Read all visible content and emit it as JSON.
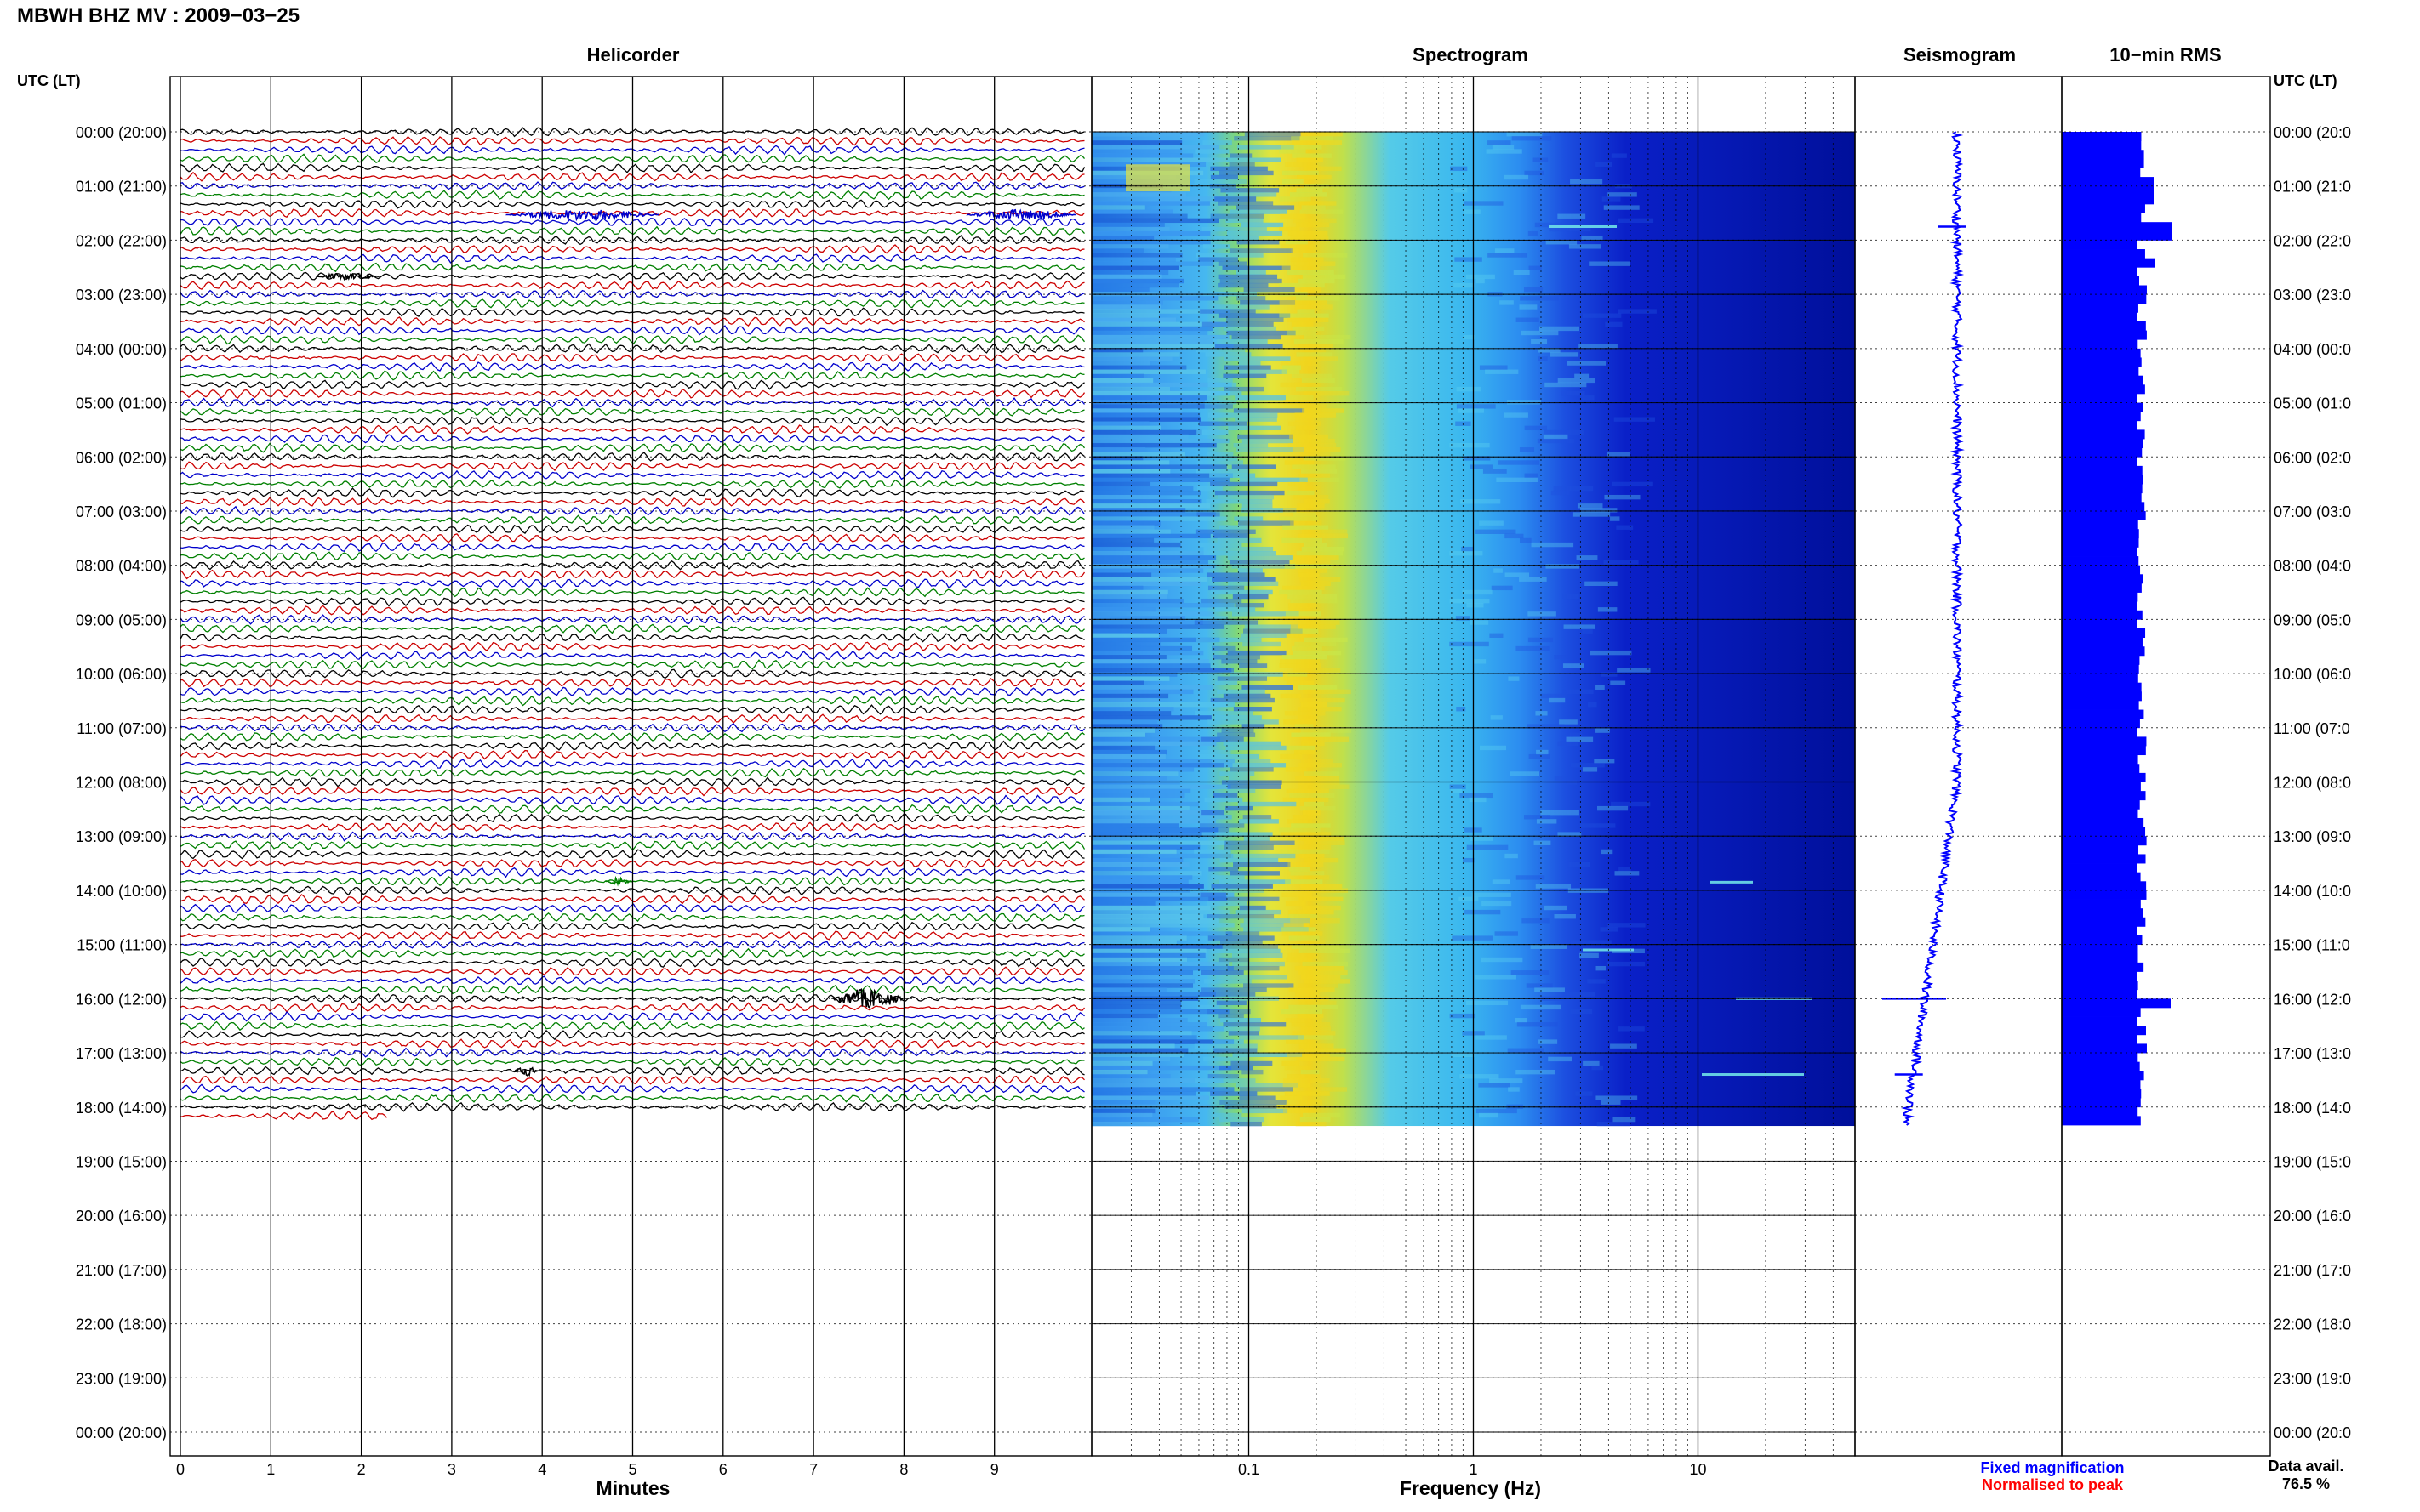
{
  "header": {
    "title": "MBWH BHZ MV : 2009−03−25",
    "utc_left": "UTC (LT)",
    "utc_right": "UTC (LT)"
  },
  "panels": {
    "helicorder": "Helicorder",
    "spectrogram": "Spectrogram",
    "seismogram": "Seismogram",
    "rms": "10−min RMS"
  },
  "axes": {
    "minutes_label": "Minutes",
    "frequency_label": "Frequency (Hz)",
    "minute_ticks": [
      "0",
      "1",
      "2",
      "3",
      "4",
      "5",
      "6",
      "7",
      "8",
      "9"
    ],
    "freq_ticks": [
      "0.1",
      "1",
      "10"
    ]
  },
  "legend": {
    "fixed": "Fixed magnification",
    "normalised": "Normalised to peak"
  },
  "availability": {
    "label": "Data avail.",
    "value": "76.5 %"
  },
  "colors": {
    "trace_cycle": [
      "#000000",
      "#cc0000",
      "#0000cc",
      "#008000"
    ],
    "seismogram": "#0000ff",
    "rms": "#0000ff",
    "grid": "#000000"
  },
  "chart_data": [
    {
      "type": "line",
      "name": "helicorder",
      "xlabel": "Minutes",
      "xlim": [
        0,
        10
      ],
      "row_minutes": 10,
      "rows_total": 144,
      "rows_with_data": 110,
      "last_row_fraction": 0.23,
      "events": [
        {
          "hour_offset": 1.53,
          "minute_start": 3.6,
          "minute_end": 5.3,
          "amp": "medium"
        },
        {
          "hour_offset": 1.53,
          "minute_start": 8.7,
          "minute_end": 9.9,
          "amp": "medium"
        },
        {
          "hour_offset": 2.67,
          "minute_start": 1.5,
          "minute_end": 2.2,
          "amp": "small"
        },
        {
          "hour_offset": 13.83,
          "minute_start": 4.7,
          "minute_end": 5.0,
          "amp": "small"
        },
        {
          "hour_offset": 16.0,
          "minute_start": 7.2,
          "minute_end": 8.0,
          "amp": "large"
        },
        {
          "hour_offset": 17.33,
          "minute_start": 3.7,
          "minute_end": 3.95,
          "amp": "medium"
        }
      ]
    },
    {
      "type": "heatmap",
      "name": "spectrogram",
      "xlabel": "Frequency (Hz)",
      "xscale": "log",
      "xlim": [
        0.02,
        50
      ],
      "data_hours": 18.35,
      "peak_frequency_hz": 0.25,
      "colormap": "jet"
    },
    {
      "type": "line",
      "name": "seismogram",
      "orientation": "vertical",
      "spikes_hours": [
        1.75,
        16.0,
        17.4
      ]
    },
    {
      "type": "bar",
      "name": "10-min RMS",
      "orientation": "horizontal",
      "bin_minutes": 10,
      "peaks_hours": [
        1.75,
        2.4,
        16.0
      ]
    }
  ],
  "y_labels_left": [
    "00:00 (20:00)",
    "01:00 (21:00)",
    "02:00 (22:00)",
    "03:00 (23:00)",
    "04:00 (00:00)",
    "05:00 (01:00)",
    "06:00 (02:00)",
    "07:00 (03:00)",
    "08:00 (04:00)",
    "09:00 (05:00)",
    "10:00 (06:00)",
    "11:00 (07:00)",
    "12:00 (08:00)",
    "13:00 (09:00)",
    "14:00 (10:00)",
    "15:00 (11:00)",
    "16:00 (12:00)",
    "17:00 (13:00)",
    "18:00 (14:00)",
    "19:00 (15:00)",
    "20:00 (16:00)",
    "21:00 (17:00)",
    "22:00 (18:00)",
    "23:00 (19:00)",
    "00:00 (20:00)"
  ],
  "y_labels_right": [
    "00:00 (20:0",
    "01:00 (21:0",
    "02:00 (22:0",
    "03:00 (23:0",
    "04:00 (00:0",
    "05:00 (01:0",
    "06:00 (02:0",
    "07:00 (03:0",
    "08:00 (04:0",
    "09:00 (05:0",
    "10:00 (06:0",
    "11:00 (07:0",
    "12:00 (08:0",
    "13:00 (09:0",
    "14:00 (10:0",
    "15:00 (11:0",
    "16:00 (12:0",
    "17:00 (13:0",
    "18:00 (14:0",
    "19:00 (15:0",
    "20:00 (16:0",
    "21:00 (17:0",
    "22:00 (18:0",
    "23:00 (19:0",
    "00:00 (20:0"
  ]
}
